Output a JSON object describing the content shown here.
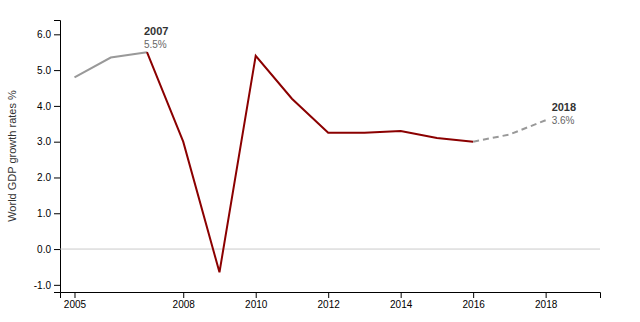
{
  "chart_data": {
    "type": "line",
    "y_label": "World GDP growth rates %",
    "x": [
      2005,
      2006,
      2007,
      2008,
      2009,
      2010,
      2011,
      2012,
      2013,
      2014,
      2015,
      2016,
      2017,
      2018
    ],
    "series": [
      {
        "color": "#999999",
        "line_style": "solid",
        "values": [
          4.8,
          5.35,
          5.5,
          null,
          null,
          null,
          null,
          null,
          null,
          null,
          null,
          null,
          null,
          null
        ]
      },
      {
        "color": "#8B0000",
        "line_style": "solid",
        "values": [
          null,
          null,
          5.5,
          3.0,
          -0.65,
          5.4,
          4.2,
          3.25,
          3.25,
          3.3,
          3.1,
          3.0,
          null,
          null
        ]
      },
      {
        "color": "#999999",
        "line_style": "dashed",
        "values": [
          null,
          null,
          null,
          null,
          null,
          null,
          null,
          null,
          null,
          null,
          null,
          3.0,
          3.2,
          3.6
        ]
      }
    ],
    "annotations": [
      {
        "x": 2007,
        "y": 5.5,
        "label": "2007",
        "value_label": "5.5%"
      },
      {
        "x": 2018,
        "y": 3.6,
        "label": "2018",
        "value_label": "3.6%"
      }
    ],
    "xlim": [
      2004.6,
      2019.5
    ],
    "ylim": [
      -1.2,
      6.4
    ],
    "xticks": [
      2005,
      2008,
      2010,
      2012,
      2014,
      2016,
      2018
    ],
    "yticks": [
      {
        "value": -1.0,
        "label": "-1.0"
      },
      {
        "value": 0.0,
        "label": "0.0"
      },
      {
        "value": 1.0,
        "label": "1.0"
      },
      {
        "value": 2.0,
        "label": "2.0"
      },
      {
        "value": 3.0,
        "label": "3.0"
      },
      {
        "value": 4.0,
        "label": "4.0"
      },
      {
        "value": 5.0,
        "label": "5.0"
      },
      {
        "value": 6.0,
        "label": "6.0"
      }
    ],
    "grid": false
  }
}
